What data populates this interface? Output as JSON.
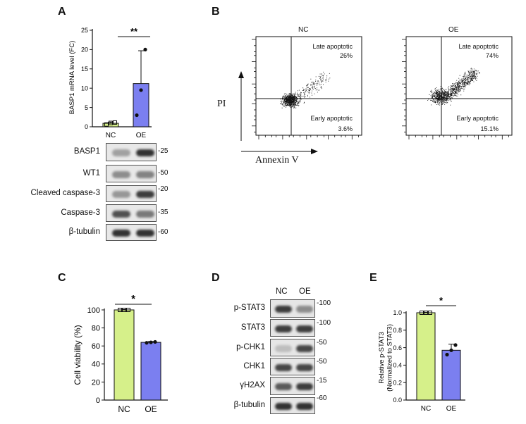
{
  "panels": {
    "A": "A",
    "B": "B",
    "C": "C",
    "D": "D",
    "E": "E"
  },
  "colors": {
    "nc": "#d6f08a",
    "oe": "#7b7ff0",
    "line": "#111111"
  },
  "chart_data": [
    {
      "id": "A",
      "type": "bar",
      "categories": [
        "NC",
        "OE"
      ],
      "values": [
        0.9,
        11.2
      ],
      "errors": [
        0.3,
        8.5
      ],
      "points": [
        [
          0.6,
          1.0,
          1.1
        ],
        [
          3.0,
          9.5,
          20.0
        ]
      ],
      "ylabel": "BASP1 mRNA level (FC)",
      "ylim": [
        0,
        25
      ],
      "yticks": [
        0,
        5,
        10,
        15,
        20,
        25
      ],
      "significance": "**"
    },
    {
      "id": "C",
      "type": "bar",
      "categories": [
        "NC",
        "OE"
      ],
      "values": [
        100,
        64
      ],
      "errors": [
        0.5,
        1
      ],
      "points": [
        [
          100,
          100,
          100
        ],
        [
          63.5,
          64,
          64.5
        ]
      ],
      "ylabel": "Cell viability (%)",
      "ylim": [
        0,
        100
      ],
      "yticks": [
        0,
        20,
        40,
        60,
        80,
        100
      ],
      "significance": "*"
    },
    {
      "id": "E",
      "type": "bar",
      "categories": [
        "NC",
        "OE"
      ],
      "values": [
        1.0,
        0.57
      ],
      "errors": [
        0.005,
        0.07
      ],
      "points": [
        [
          1.0,
          1.0,
          1.0
        ],
        [
          0.52,
          0.57,
          0.63
        ]
      ],
      "ylabel": "Relative p-STAT3 (Normalized to STAT3)",
      "ylabel_lines": [
        "Relative p-STAT3",
        "(Normalized to STAT3)"
      ],
      "ylim": [
        0,
        1.0
      ],
      "yticks": [
        0.0,
        0.2,
        0.4,
        0.6,
        0.8,
        1.0
      ],
      "ytick_labels": [
        "0.0",
        "0.2",
        "0.4",
        "0.6",
        "0.8",
        "1.0"
      ],
      "significance": "*"
    }
  ],
  "blotA": {
    "rows": [
      {
        "label": "BASP1",
        "mw": "-25"
      },
      {
        "label": "WT1",
        "mw": "-50"
      },
      {
        "label": "Cleaved caspase-3",
        "mw": "-20"
      },
      {
        "label": "Caspase-3",
        "mw": "-35"
      },
      {
        "label": "β-tubulin",
        "mw": "-60"
      }
    ]
  },
  "blotD": {
    "lanes": [
      "NC",
      "OE"
    ],
    "rows": [
      {
        "label": "p-STAT3",
        "mw": "-100"
      },
      {
        "label": "STAT3",
        "mw": "-100"
      },
      {
        "label": "p-CHK1",
        "mw": "-50"
      },
      {
        "label": "CHK1",
        "mw": "-50"
      },
      {
        "label": "γH2AX",
        "mw": "-15"
      },
      {
        "label": "β-tubulin",
        "mw": "-60"
      }
    ]
  },
  "flow": {
    "xlabel": "Annexin V",
    "ylabel": "PI",
    "plots": [
      {
        "title": "NC",
        "late_label": "Late apoptotic",
        "late_pct": "26%",
        "early_label": "Early apoptotic",
        "early_pct": "3.6%"
      },
      {
        "title": "OE",
        "late_label": "Late apoptotic",
        "late_pct": "74%",
        "early_label": "Early apoptotic",
        "early_pct": "15.1%"
      }
    ]
  }
}
